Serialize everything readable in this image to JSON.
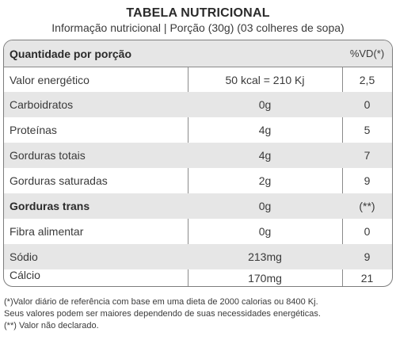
{
  "title": "TABELA NUTRICIONAL",
  "subtitle": "Informação nutricional | Porção (30g) (03 colheres de sopa)",
  "table": {
    "header": {
      "name": "Quantidade por porção",
      "vd": "%VD(*)"
    },
    "rows": [
      {
        "name": "Valor energético",
        "value": "50 kcal = 210 Kj",
        "vd": "2,5"
      },
      {
        "name": "Carboidratos",
        "value": "0g",
        "vd": "0"
      },
      {
        "name": "Proteínas",
        "value": "4g",
        "vd": "5"
      },
      {
        "name": "Gorduras totais",
        "value": "4g",
        "vd": "7"
      },
      {
        "name": "Gorduras saturadas",
        "value": "2g",
        "vd": "9"
      },
      {
        "name": "Gorduras trans",
        "value": "0g",
        "vd": "(**)"
      },
      {
        "name": "Fibra alimentar",
        "value": "0g",
        "vd": "0"
      },
      {
        "name": "Sódio",
        "value": "213mg",
        "vd": "9"
      },
      {
        "name": "Cálcio",
        "value": "170mg",
        "vd": "21"
      }
    ]
  },
  "footnotes": [
    "(*)Valor diário de referência com base em uma dieta de 2000 calorias ou 8400 Kj.",
    "Seus valores podem ser maiores dependendo de suas necessidades energéticas.",
    "(**) Valor não declarado."
  ],
  "colors": {
    "shade": "#e6e6e6",
    "border": "#7d7d7d",
    "text": "#3a3a3a"
  }
}
